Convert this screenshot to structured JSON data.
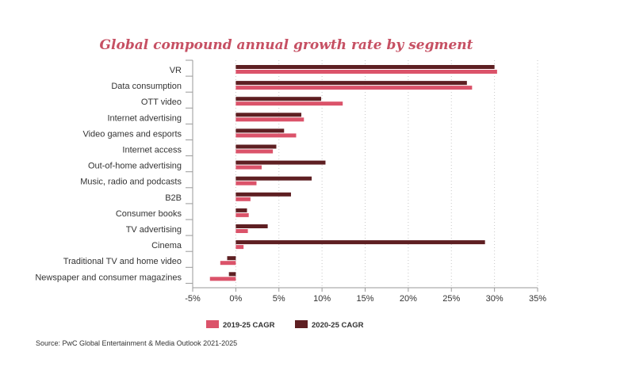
{
  "chart_data": {
    "type": "bar",
    "orientation": "horizontal",
    "title": "Global compound annual growth rate by segment",
    "categories": [
      "VR",
      "Data consumption",
      "OTT video",
      "Internet advertising",
      "Video games and esports",
      "Internet access",
      "Out-of-home advertising",
      "Music, radio and podcasts",
      "B2B",
      "Consumer books",
      "TV advertising",
      "Cinema",
      "Traditional TV and home video",
      "Newspaper and consumer magazines"
    ],
    "series": [
      {
        "name": "2020-25 CAGR",
        "color": "#5e1f22",
        "values": [
          30.0,
          26.8,
          9.9,
          7.6,
          5.6,
          4.7,
          10.4,
          8.8,
          6.4,
          1.3,
          3.7,
          28.9,
          -1.0,
          -0.8
        ]
      },
      {
        "name": "2019-25 CAGR",
        "color": "#db536a",
        "values": [
          30.3,
          27.4,
          12.4,
          7.9,
          7.0,
          4.3,
          3.0,
          2.4,
          1.7,
          1.5,
          1.4,
          0.9,
          -1.8,
          -3.0
        ]
      }
    ],
    "xticks": [
      "-5%",
      "0%",
      "5%",
      "10%",
      "15%",
      "20%",
      "25%",
      "30%",
      "35%"
    ],
    "xlim": [
      -5,
      35
    ],
    "grid": "vertical dotted",
    "legend_position": "bottom-left",
    "xlabel": "",
    "ylabel": "",
    "title_color": "#c65063"
  },
  "footer": {
    "source": "Source: PwC Global Entertainment & Media Outlook 2021-2025"
  }
}
